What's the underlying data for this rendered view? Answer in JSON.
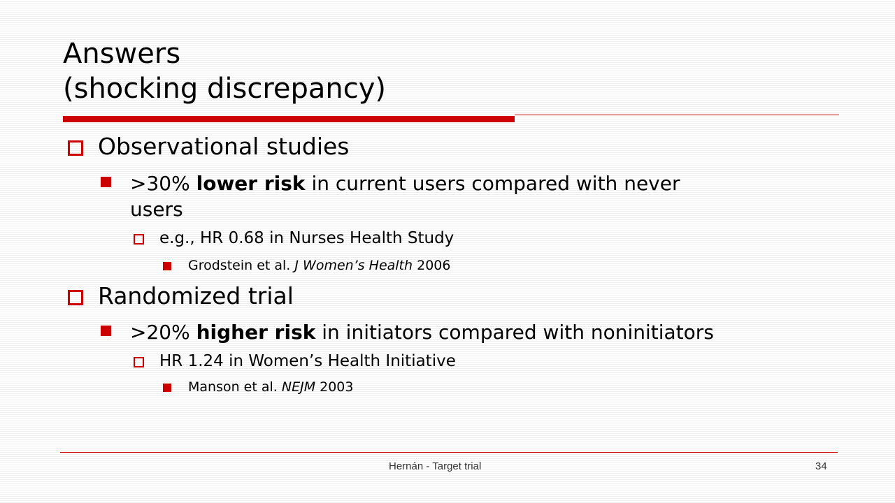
{
  "slide": {
    "title_line1": "Answers",
    "title_line2": "(shocking discrepancy)",
    "accent_color": "#cc0000",
    "footer": "Hernán - Target trial",
    "page_number": "34"
  },
  "bullets": {
    "obs": {
      "label": "Observational studies",
      "sub": {
        "pre": ">30% ",
        "bold": "lower risk",
        "post": " in current users compared with never",
        "line2": "users"
      },
      "detail": "e.g., HR 0.68 in Nurses Health Study",
      "ref": {
        "pre": "Grodstein et al. ",
        "italic": "J Women’s Health",
        "post": " 2006"
      }
    },
    "rct": {
      "label": "Randomized trial",
      "sub": {
        "pre": ">20% ",
        "bold": "higher risk",
        "post": " in initiators compared with noninitiators"
      },
      "detail": "HR 1.24 in Women’s Health Initiative",
      "ref": {
        "pre": "Manson et al. ",
        "italic": "NEJM",
        "post": " 2003"
      }
    }
  }
}
